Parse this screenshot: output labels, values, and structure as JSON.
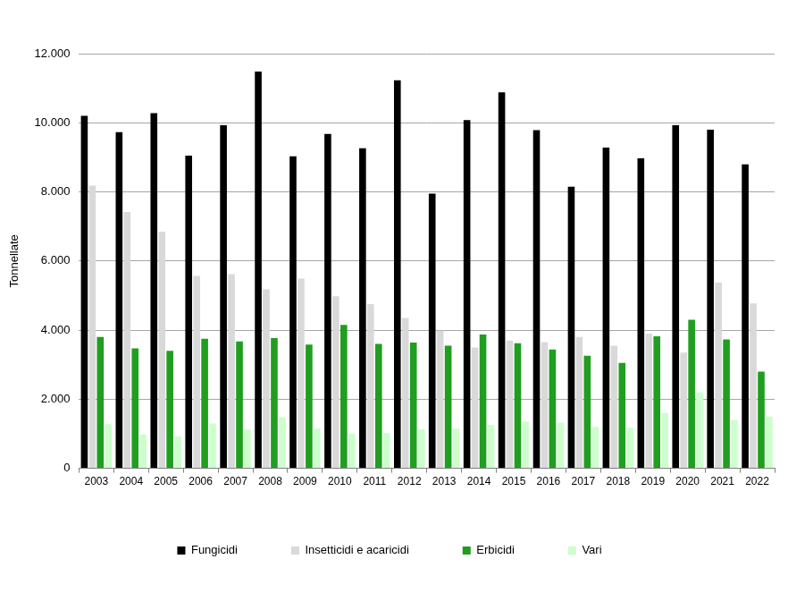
{
  "chart_data": {
    "type": "bar",
    "y_label": "Tonnellate",
    "categories": [
      "2003",
      "2004",
      "2005",
      "2006",
      "2007",
      "2008",
      "2009",
      "2010",
      "2011",
      "2012",
      "2013",
      "2014",
      "2015",
      "2016",
      "2017",
      "2018",
      "2019",
      "2020",
      "2021",
      "2022"
    ],
    "series": [
      {
        "name": "Fungicidi",
        "color": "#000000",
        "values": [
          10200,
          9730,
          10280,
          9050,
          9930,
          11480,
          9030,
          9680,
          9260,
          11230,
          7950,
          10080,
          10880,
          9790,
          8150,
          9280,
          8970,
          9930,
          9800,
          8800
        ]
      },
      {
        "name": "Insetticidi e acaricidi",
        "color": "#d9d9d9",
        "values": [
          8180,
          7420,
          6850,
          5570,
          5620,
          5180,
          5490,
          4980,
          4750,
          4350,
          3980,
          3500,
          3700,
          3650,
          3800,
          3550,
          3900,
          3350,
          5380,
          4770
        ]
      },
      {
        "name": "Erbicidi",
        "color": "#1f9e1f",
        "values": [
          3800,
          3470,
          3400,
          3750,
          3670,
          3770,
          3580,
          4150,
          3600,
          3640,
          3550,
          3870,
          3620,
          3440,
          3260,
          3050,
          3820,
          4300,
          3730,
          2800
        ]
      },
      {
        "name": "Vari",
        "color": "#ccffcc",
        "values": [
          1280,
          980,
          920,
          1300,
          1120,
          1480,
          1150,
          1000,
          1020,
          1130,
          1150,
          1260,
          1350,
          1320,
          1200,
          1180,
          1600,
          2200,
          1400,
          1500
        ]
      }
    ],
    "ylim": [
      0,
      12000
    ],
    "yticks": [
      0,
      {
        "value": 2000,
        "label": "2.000"
      },
      {
        "value": 4000,
        "label": "4.000"
      },
      {
        "value": 6000,
        "label": "6.000"
      },
      {
        "value": 8000,
        "label": "8.000"
      },
      {
        "value": 10000,
        "label": "10.000"
      },
      {
        "value": 12000,
        "label": "12.000"
      }
    ],
    "grid": true,
    "legend": "bottom"
  }
}
